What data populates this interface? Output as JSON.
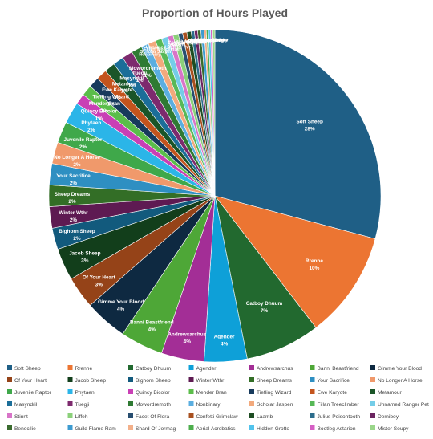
{
  "chart_data": {
    "type": "pie",
    "title": "Proportion of Hours Played",
    "legend_position": "bottom",
    "slices": [
      {
        "label": "Soft Sheep",
        "value": 28,
        "pct_label": "28%",
        "color": "#1f5f86"
      },
      {
        "label": "Rrenne",
        "value": 10,
        "pct_label": "10%",
        "color": "#ec7532"
      },
      {
        "label": "Catboy Dhuum",
        "value": 7,
        "pct_label": "7%",
        "color": "#22692f"
      },
      {
        "label": "Agender",
        "value": 4,
        "pct_label": "4%",
        "color": "#0ea0d8"
      },
      {
        "label": "Andrewsarchus",
        "value": 4,
        "pct_label": "4%",
        "color": "#a32e96"
      },
      {
        "label": "Banni Beastfriend",
        "value": 4,
        "pct_label": "4%",
        "color": "#4ea737"
      },
      {
        "label": "Gimme Your Blood",
        "value": 4,
        "pct_label": "4%",
        "color": "#0e2941"
      },
      {
        "label": "Of Your Heart",
        "value": 3,
        "pct_label": "3%",
        "color": "#954318"
      },
      {
        "label": "Jacob Sheep",
        "value": 3,
        "pct_label": "3%",
        "color": "#123e1b"
      },
      {
        "label": "Bighorn Sheep",
        "value": 2,
        "pct_label": "2%",
        "color": "#125a7d"
      },
      {
        "label": "Winter Wthr",
        "value": 2,
        "pct_label": "2%",
        "color": "#5e1a52"
      },
      {
        "label": "Sheep Dreams",
        "value": 2,
        "pct_label": "2%",
        "color": "#336e26"
      },
      {
        "label": "Your Sacrifice",
        "value": 2,
        "pct_label": "2%",
        "color": "#2e8fc2"
      },
      {
        "label": "No Longer A Horse",
        "value": 2,
        "pct_label": "2%",
        "color": "#f0996b"
      },
      {
        "label": "Juvenile Raptor",
        "value": 2,
        "pct_label": "2%",
        "color": "#3fa84a"
      },
      {
        "label": "Phytaen",
        "value": 2,
        "pct_label": "2%",
        "color": "#2bb5e8"
      },
      {
        "label": "Quincy Bicolor",
        "value": 1,
        "pct_label": "1%",
        "color": "#c93fb5"
      },
      {
        "label": "Mender Bran",
        "value": 1,
        "pct_label": "1%",
        "color": "#5bbd4a"
      },
      {
        "label": "Tiefling Wizard",
        "value": 1,
        "pct_label": "1%",
        "color": "#173a5c"
      },
      {
        "label": "Ewe Karyote",
        "value": 1,
        "pct_label": "1%",
        "color": "#c4541d"
      },
      {
        "label": "Metamour",
        "value": 1,
        "pct_label": "1%",
        "color": "#1a5528"
      },
      {
        "label": "Masyndril",
        "value": 1,
        "pct_label": "1%",
        "color": "#1b6e99"
      },
      {
        "label": "Tuegji",
        "value": 1,
        "pct_label": "1%",
        "color": "#7d2a6e"
      },
      {
        "label": "Mowordremoth",
        "value": 1,
        "pct_label": "1%",
        "color": "#2f7a33"
      },
      {
        "label": "Nonbinary",
        "value": 0.7,
        "color": "#5aaee0"
      },
      {
        "label": "Scholar Jaspen",
        "value": 0.7,
        "color": "#f2a97c"
      },
      {
        "label": "Fillan Treeclimber",
        "value": 0.6,
        "color": "#57b857"
      },
      {
        "label": "Unnamed Ranger Pet",
        "value": 0.6,
        "color": "#74cde8"
      },
      {
        "label": "Stinnt",
        "value": 0.5,
        "color": "#d874c8"
      },
      {
        "label": "Liffeh",
        "value": 0.5,
        "color": "#8bd07a"
      },
      {
        "label": "Facet Of Flora",
        "value": 0.4,
        "color": "#284e70"
      },
      {
        "label": "Confetti Grimclaw",
        "value": 0.4,
        "color": "#a8501f"
      },
      {
        "label": "Laamb",
        "value": 0.4,
        "color": "#1e4d23"
      },
      {
        "label": "Julius Poisontooth",
        "value": 0.3,
        "color": "#2c6d8c"
      },
      {
        "label": "Demiboy",
        "value": 0.3,
        "color": "#6b2460"
      },
      {
        "label": "Benecilie",
        "value": 0.3,
        "color": "#3a6b2e"
      },
      {
        "label": "Guild Flame Ram",
        "value": 0.3,
        "color": "#3d9bd0"
      },
      {
        "label": "Shard Of Jormag",
        "value": 0.2,
        "color": "#f3b08a"
      },
      {
        "label": "Aerial Acrobatics",
        "value": 0.2,
        "color": "#4dae4d"
      },
      {
        "label": "Hidden Grotto",
        "value": 0.2,
        "color": "#52c3ec"
      },
      {
        "label": "Bootleg Astarion",
        "value": 0.2,
        "color": "#d55fc4"
      },
      {
        "label": "Mister Soupy",
        "value": 0.2,
        "color": "#9ad68a"
      }
    ]
  }
}
